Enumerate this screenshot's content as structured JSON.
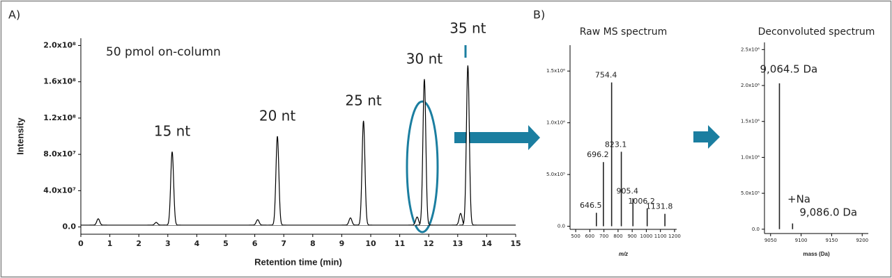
{
  "chart_data": [
    {
      "type": "chromatogram",
      "panel_label": "A)",
      "annotation": "50 pmol on-column",
      "xlabel": "Retention time (min)",
      "ylabel": "Intensity",
      "xlim": [
        0,
        15
      ],
      "ylim": [
        -8000000,
        208000000
      ],
      "xticks": [
        0,
        1,
        2,
        3,
        4,
        5,
        6,
        7,
        8,
        9,
        10,
        11,
        12,
        13,
        14,
        15
      ],
      "yticks": [
        {
          "value": 0,
          "label": "0.0"
        },
        {
          "value": 40000000,
          "label": "4.0x10⁷"
        },
        {
          "value": 80000000,
          "label": "8.0x10⁷"
        },
        {
          "value": 120000000,
          "label": "1.2x10⁸"
        },
        {
          "value": 160000000,
          "label": "1.6x10⁸"
        },
        {
          "value": 200000000,
          "label": "2.0x10⁸"
        }
      ],
      "baseline": 2000000,
      "color": "#000000",
      "x": [
        0.6,
        2.6,
        3.15,
        6.1,
        6.78,
        9.3,
        9.75,
        11.6,
        11.85,
        13.1,
        13.35
      ],
      "values": [
        9000000,
        5000000,
        83000000,
        8000000,
        100000000,
        10000000,
        117000000,
        11000000,
        163000000,
        15000000,
        178000000
      ],
      "point_labels": [
        null,
        null,
        "15 nt",
        null,
        "20 nt",
        null,
        "25 nt",
        null,
        "30 nt",
        null,
        "35 nt"
      ]
    },
    {
      "type": "stick",
      "panel_label": "B)",
      "title": "Raw MS spectrum",
      "xlabel": "m/z",
      "xlim": [
        460,
        1215
      ],
      "ylim": [
        -30000,
        1750000
      ],
      "xticks": [
        500,
        600,
        700,
        800,
        900,
        1000,
        1100,
        1200
      ],
      "yticks": [
        {
          "value": 0,
          "label": "0.0"
        },
        {
          "value": 500000,
          "label": "5.0x10⁵"
        },
        {
          "value": 1000000,
          "label": "1.0x10⁶"
        },
        {
          "value": 1500000,
          "label": "1.5x10⁶"
        }
      ],
      "color": "#222222",
      "x": [
        646.5,
        696.2,
        754.4,
        823.1,
        905.4,
        1006.2,
        1131.8
      ],
      "values": [
        130000,
        620000,
        1390000,
        720000,
        270000,
        170000,
        120000
      ]
    },
    {
      "type": "stick",
      "title": "Deconvoluted spectrum",
      "xlabel": "mass (Da)",
      "annotation": "+Na",
      "xlim": [
        9040,
        9210
      ],
      "ylim": [
        -60000,
        2600000
      ],
      "xticks": [
        9050,
        9100,
        9150,
        9200
      ],
      "yticks": [
        {
          "value": 0,
          "label": "0.0"
        },
        {
          "value": 500000,
          "label": "5.0x10⁵"
        },
        {
          "value": 1000000,
          "label": "1.0x10⁶"
        },
        {
          "value": 1500000,
          "label": "1.5x10⁶"
        },
        {
          "value": 2000000,
          "label": "2.0x10⁶"
        },
        {
          "value": 2500000,
          "label": "2.5x10⁶"
        }
      ],
      "color": "#222222",
      "x": [
        9064.5,
        9086.0
      ],
      "values": [
        2030000,
        80000
      ],
      "point_labels": [
        "9,064.5 Da",
        "9,086.0 Da"
      ]
    }
  ]
}
